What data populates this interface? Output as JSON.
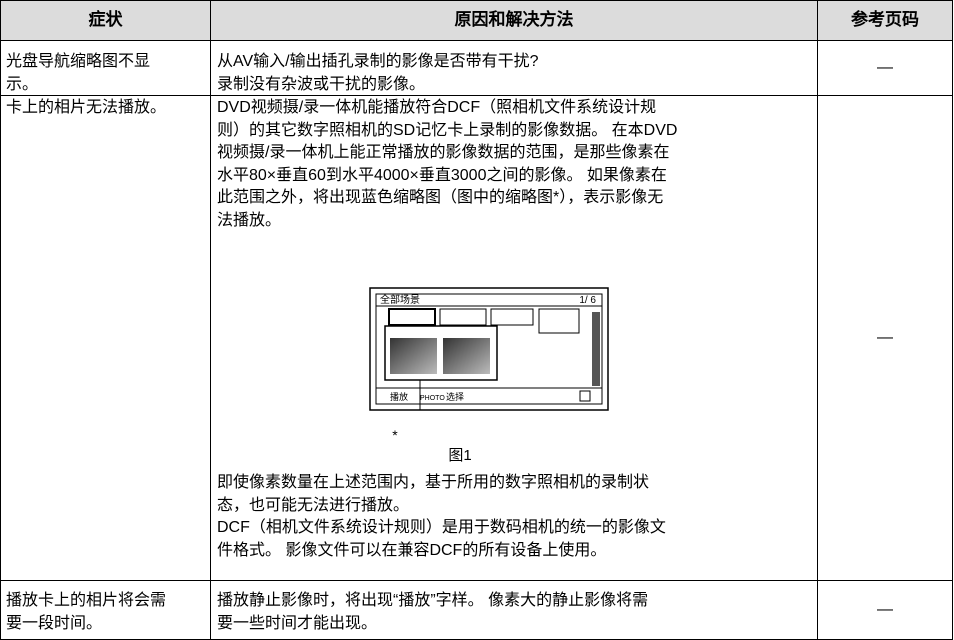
{
  "table": {
    "header": [
      "症状",
      "原因和解决方法",
      "参考页码"
    ],
    "rows": [
      {
        "symptom": [
          "光盘导航缩略图不显",
          "示。"
        ],
        "solution": [
          "从AV输入/输出插孔录制的影像是否带有干扰?",
          "录制没有杂波或干扰的影像。"
        ],
        "page": "—"
      },
      {
        "symptom": [
          "卡上的相片无法播放。"
        ],
        "solution": [
          "DVD视频摄/录一体机能播放符合DCF（照相机文件系统设计规",
          "则）的其它数字照相机的SD记忆卡上录制的影像数据。 在本DVD",
          "视频摄/录一体机上能正常播放的影像数据的范围，是那些像素在",
          "水平80×垂直60到水平4000×垂直3000之间的影像。 如果像素在",
          "此范围之外，将出现蓝色缩略图（图中的缩略图*），表示影像无",
          "法播放。"
        ],
        "figure": {
          "screen_title": "全部场景",
          "counter": "1/ 6",
          "play": "播放",
          "photo": "PHOTO",
          "select": "选择",
          "marker": "*",
          "caption": "图1"
        },
        "solution_after": [
          "即使像素数量在上述范围内，基于所用的数字照相机的录制状",
          "态，也可能无法进行播放。",
          "DCF（相机文件系统设计规则）是用于数码相机的统一的影像文",
          "件格式。 影像文件可以在兼容DCF的所有设备上使用。"
        ],
        "page": "—"
      },
      {
        "symptom": [
          "播放卡上的相片将会需",
          "要一段时间。"
        ],
        "solution": [
          "播放静止影像时，将出现“播放”字样。 像素大的静止影像将需",
          "要一些时间才能出现。"
        ],
        "page": "—"
      }
    ]
  }
}
